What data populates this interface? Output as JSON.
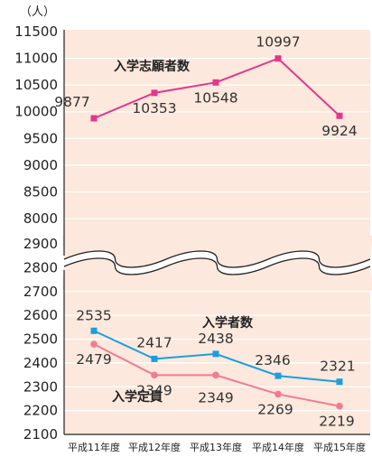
{
  "chart_data": {
    "type": "line",
    "unit_label": "（人）",
    "categories": [
      "平成11年度",
      "平成12年度",
      "平成13年度",
      "平成14年度",
      "平成15年度"
    ],
    "upper_axis": {
      "ylim": [
        8000,
        11500
      ],
      "ticks": [
        8000,
        8500,
        9000,
        9500,
        10000,
        10500,
        11000,
        11500
      ]
    },
    "lower_axis": {
      "ylim": [
        2100,
        2900
      ],
      "ticks": [
        2100,
        2200,
        2300,
        2400,
        2500,
        2600,
        2700,
        2800,
        2900
      ]
    },
    "axis_break": true,
    "grid": true,
    "series": [
      {
        "name": "入学志願者数",
        "axis": "upper",
        "color": "#e5358c",
        "marker": "square",
        "values": [
          9877,
          10353,
          10548,
          10997,
          9924
        ]
      },
      {
        "name": "入学者数",
        "axis": "lower",
        "color": "#1a9ee0",
        "marker": "square",
        "values": [
          2535,
          2417,
          2438,
          2346,
          2321
        ]
      },
      {
        "name": "入学定員",
        "axis": "lower",
        "color": "#f07c93",
        "marker": "circle",
        "values": [
          2479,
          2349,
          2349,
          2269,
          2219
        ]
      }
    ]
  },
  "colors": {
    "plot_bg": "#fce8dc",
    "grid": "#ffffff",
    "axis": "#222222"
  }
}
